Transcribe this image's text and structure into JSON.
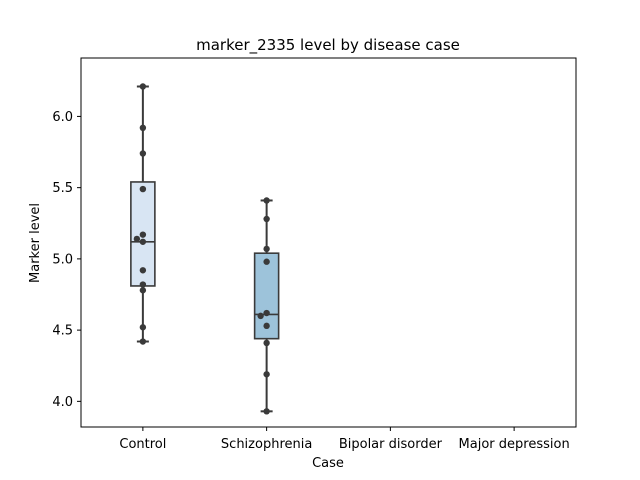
{
  "chart_data": {
    "type": "box",
    "title": "marker_2335 level by disease case",
    "xlabel": "Case",
    "ylabel": "Marker level",
    "ylim": [
      3.82,
      6.41
    ],
    "yticks": [
      4.0,
      4.5,
      5.0,
      5.5,
      6.0
    ],
    "ytick_labels": [
      "4.0",
      "4.5",
      "5.0",
      "5.5",
      "6.0"
    ],
    "categories": [
      "Control",
      "Schizophrenia",
      "Bipolar disorder",
      "Major depression"
    ],
    "colors": {
      "Control": "#d8e5f3",
      "Schizophrenia": "#9dc3da",
      "edge": "#3a3a3a",
      "points": "#3a3a3a"
    },
    "boxes": [
      {
        "category": "Control",
        "whislo": 4.42,
        "q1": 4.81,
        "median": 5.12,
        "q3": 5.54,
        "whishi": 6.21
      },
      {
        "category": "Schizophrenia",
        "whislo": 3.93,
        "q1": 4.44,
        "median": 4.61,
        "q3": 5.04,
        "whishi": 5.41
      }
    ],
    "points": [
      {
        "category": "Control",
        "values": [
          6.21,
          5.92,
          5.74,
          5.49,
          5.17,
          5.14,
          5.12,
          4.92,
          4.82,
          4.78,
          4.52,
          4.42
        ]
      },
      {
        "category": "Schizophrenia",
        "values": [
          5.41,
          5.28,
          5.07,
          4.98,
          4.62,
          4.6,
          4.53,
          4.41,
          4.19,
          3.93
        ]
      }
    ]
  }
}
